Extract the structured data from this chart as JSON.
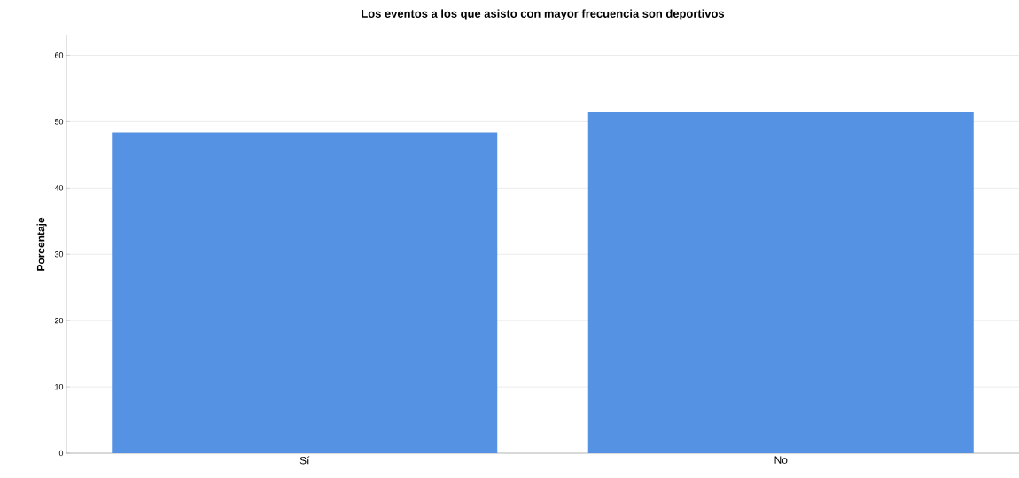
{
  "chart_data": {
    "type": "bar",
    "title": "Los eventos a los que asisto con mayor frecuencia son deportivos",
    "ylabel": "Porcentaje",
    "categories": [
      "Sí",
      "No"
    ],
    "values": [
      48.4,
      51.5
    ],
    "color": "#5592e3",
    "ylim": [
      0,
      63
    ],
    "yticks": [
      0,
      10,
      20,
      30,
      40,
      50,
      60
    ],
    "grid": "y"
  }
}
